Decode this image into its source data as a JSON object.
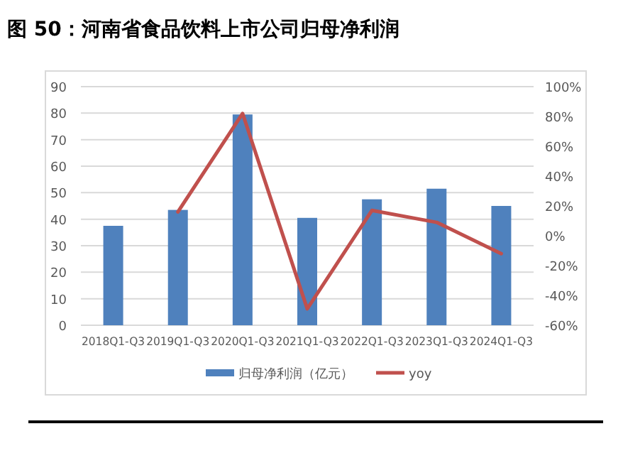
{
  "chart_data": {
    "type": "bar",
    "title": "图 50：河南省食品饮料上市公司归母净利润",
    "categories": [
      "2018Q1-Q3",
      "2019Q1-Q3",
      "2020Q1-Q3",
      "2021Q1-Q3",
      "2022Q1-Q3",
      "2023Q1-Q3",
      "2024Q1-Q3"
    ],
    "series": [
      {
        "name": "归母净利润（亿元）",
        "color": "#4f81bd",
        "values": [
          37.5,
          43.5,
          79.5,
          40.5,
          47.5,
          51.5,
          45
        ]
      },
      {
        "name": "yoy",
        "type": "line",
        "axis": "y2",
        "color": "#c0504d",
        "values": [
          null,
          16,
          82,
          -49,
          17,
          9,
          -12
        ]
      }
    ],
    "ylim": [
      0,
      90
    ],
    "yticks": [
      0,
      10,
      20,
      30,
      40,
      50,
      60,
      70,
      80,
      90
    ],
    "y2lim": [
      -60,
      100
    ],
    "y2ticks": [
      {
        "value": -60,
        "label": "-60%"
      },
      {
        "value": -40,
        "label": "-40%"
      },
      {
        "value": -20,
        "label": "-20%"
      },
      {
        "value": 0,
        "label": "0%"
      },
      {
        "value": 20,
        "label": "20%"
      },
      {
        "value": 40,
        "label": "40%"
      },
      {
        "value": 60,
        "label": "60%"
      },
      {
        "value": 80,
        "label": "80%"
      },
      {
        "value": 100,
        "label": "100%"
      }
    ],
    "grid": "y",
    "legend": "bottom"
  }
}
